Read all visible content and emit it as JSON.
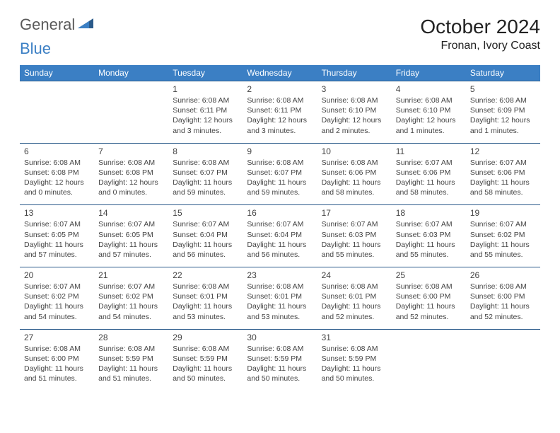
{
  "logo": {
    "word1": "General",
    "word2": "Blue"
  },
  "title": "October 2024",
  "location": "Fronan, Ivory Coast",
  "colors": {
    "header_bg": "#3b7fc4",
    "header_text": "#ffffff",
    "border": "#2a5a8a",
    "text": "#444444",
    "logo_gray": "#5a5a5a",
    "logo_blue": "#3b7fc4"
  },
  "daynames": [
    "Sunday",
    "Monday",
    "Tuesday",
    "Wednesday",
    "Thursday",
    "Friday",
    "Saturday"
  ],
  "weeks": [
    [
      null,
      null,
      {
        "n": "1",
        "sr": "6:08 AM",
        "ss": "6:11 PM",
        "dh": "12",
        "dm": "3"
      },
      {
        "n": "2",
        "sr": "6:08 AM",
        "ss": "6:11 PM",
        "dh": "12",
        "dm": "3"
      },
      {
        "n": "3",
        "sr": "6:08 AM",
        "ss": "6:10 PM",
        "dh": "12",
        "dm": "2"
      },
      {
        "n": "4",
        "sr": "6:08 AM",
        "ss": "6:10 PM",
        "dh": "12",
        "dm": "1"
      },
      {
        "n": "5",
        "sr": "6:08 AM",
        "ss": "6:09 PM",
        "dh": "12",
        "dm": "1"
      }
    ],
    [
      {
        "n": "6",
        "sr": "6:08 AM",
        "ss": "6:08 PM",
        "dh": "12",
        "dm": "0"
      },
      {
        "n": "7",
        "sr": "6:08 AM",
        "ss": "6:08 PM",
        "dh": "12",
        "dm": "0"
      },
      {
        "n": "8",
        "sr": "6:08 AM",
        "ss": "6:07 PM",
        "dh": "11",
        "dm": "59"
      },
      {
        "n": "9",
        "sr": "6:08 AM",
        "ss": "6:07 PM",
        "dh": "11",
        "dm": "59"
      },
      {
        "n": "10",
        "sr": "6:08 AM",
        "ss": "6:06 PM",
        "dh": "11",
        "dm": "58"
      },
      {
        "n": "11",
        "sr": "6:07 AM",
        "ss": "6:06 PM",
        "dh": "11",
        "dm": "58"
      },
      {
        "n": "12",
        "sr": "6:07 AM",
        "ss": "6:06 PM",
        "dh": "11",
        "dm": "58"
      }
    ],
    [
      {
        "n": "13",
        "sr": "6:07 AM",
        "ss": "6:05 PM",
        "dh": "11",
        "dm": "57"
      },
      {
        "n": "14",
        "sr": "6:07 AM",
        "ss": "6:05 PM",
        "dh": "11",
        "dm": "57"
      },
      {
        "n": "15",
        "sr": "6:07 AM",
        "ss": "6:04 PM",
        "dh": "11",
        "dm": "56"
      },
      {
        "n": "16",
        "sr": "6:07 AM",
        "ss": "6:04 PM",
        "dh": "11",
        "dm": "56"
      },
      {
        "n": "17",
        "sr": "6:07 AM",
        "ss": "6:03 PM",
        "dh": "11",
        "dm": "55"
      },
      {
        "n": "18",
        "sr": "6:07 AM",
        "ss": "6:03 PM",
        "dh": "11",
        "dm": "55"
      },
      {
        "n": "19",
        "sr": "6:07 AM",
        "ss": "6:02 PM",
        "dh": "11",
        "dm": "55"
      }
    ],
    [
      {
        "n": "20",
        "sr": "6:07 AM",
        "ss": "6:02 PM",
        "dh": "11",
        "dm": "54"
      },
      {
        "n": "21",
        "sr": "6:07 AM",
        "ss": "6:02 PM",
        "dh": "11",
        "dm": "54"
      },
      {
        "n": "22",
        "sr": "6:08 AM",
        "ss": "6:01 PM",
        "dh": "11",
        "dm": "53"
      },
      {
        "n": "23",
        "sr": "6:08 AM",
        "ss": "6:01 PM",
        "dh": "11",
        "dm": "53"
      },
      {
        "n": "24",
        "sr": "6:08 AM",
        "ss": "6:01 PM",
        "dh": "11",
        "dm": "52"
      },
      {
        "n": "25",
        "sr": "6:08 AM",
        "ss": "6:00 PM",
        "dh": "11",
        "dm": "52"
      },
      {
        "n": "26",
        "sr": "6:08 AM",
        "ss": "6:00 PM",
        "dh": "11",
        "dm": "52"
      }
    ],
    [
      {
        "n": "27",
        "sr": "6:08 AM",
        "ss": "6:00 PM",
        "dh": "11",
        "dm": "51"
      },
      {
        "n": "28",
        "sr": "6:08 AM",
        "ss": "5:59 PM",
        "dh": "11",
        "dm": "51"
      },
      {
        "n": "29",
        "sr": "6:08 AM",
        "ss": "5:59 PM",
        "dh": "11",
        "dm": "50"
      },
      {
        "n": "30",
        "sr": "6:08 AM",
        "ss": "5:59 PM",
        "dh": "11",
        "dm": "50"
      },
      {
        "n": "31",
        "sr": "6:08 AM",
        "ss": "5:59 PM",
        "dh": "11",
        "dm": "50"
      },
      null,
      null
    ]
  ],
  "labels": {
    "sunrise": "Sunrise: ",
    "sunset": "Sunset: ",
    "daylight_pre": "Daylight: ",
    "hours": " hours",
    "and": "and ",
    "minutes": " minutes."
  }
}
